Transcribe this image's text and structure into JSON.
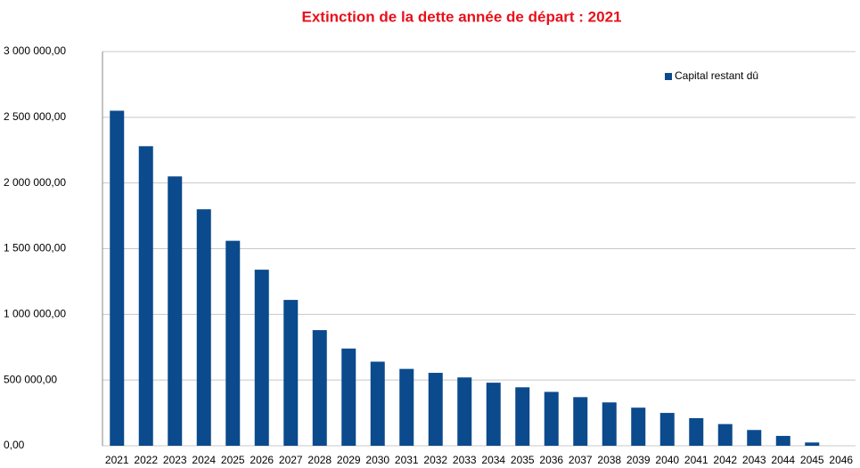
{
  "chart_data": {
    "type": "bar",
    "title": "Extinction de la dette année de départ : 2021",
    "categories": [
      "2021",
      "2022",
      "2023",
      "2024",
      "2025",
      "2026",
      "2027",
      "2028",
      "2029",
      "2030",
      "2031",
      "2032",
      "2033",
      "2034",
      "2035",
      "2036",
      "2037",
      "2038",
      "2039",
      "2040",
      "2041",
      "2042",
      "2043",
      "2044",
      "2045",
      "2046"
    ],
    "series": [
      {
        "name": "Capital restant dû",
        "color": "#0b4a8c",
        "values": [
          2550000,
          2280000,
          2050000,
          1800000,
          1560000,
          1340000,
          1110000,
          880000,
          740000,
          640000,
          585000,
          555000,
          520000,
          480000,
          445000,
          410000,
          370000,
          330000,
          290000,
          250000,
          210000,
          165000,
          120000,
          75000,
          25000,
          0
        ]
      }
    ],
    "ylim": [
      0,
      3000000
    ],
    "yticks": [
      {
        "value": 0,
        "label": "0,00"
      },
      {
        "value": 500000,
        "label": "500 000,00"
      },
      {
        "value": 1000000,
        "label": "1 000 000,00"
      },
      {
        "value": 1500000,
        "label": "1 500 000,00"
      },
      {
        "value": 2000000,
        "label": "2 000 000,00"
      },
      {
        "value": 2500000,
        "label": "2 500 000,00"
      },
      {
        "value": 3000000,
        "label": "3 000 000,00"
      }
    ],
    "grid": true,
    "legend": "top-right"
  }
}
